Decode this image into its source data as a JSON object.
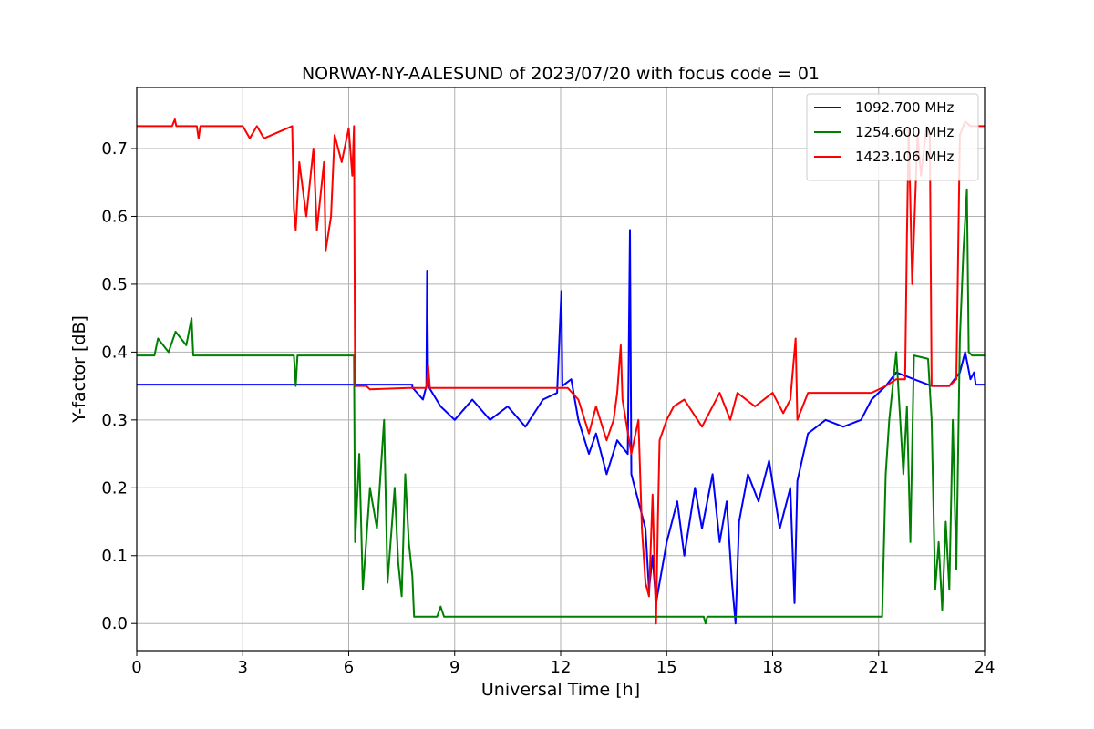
{
  "chart_data": {
    "type": "line",
    "title": "NORWAY-NY-AALESUND of 2023/07/20 with focus code = 01",
    "xlabel": "Universal Time [h]",
    "ylabel": "Y-factor [dB]",
    "xlim": [
      0,
      24
    ],
    "ylim": [
      -0.04,
      0.79
    ],
    "xticks": [
      0,
      3,
      6,
      9,
      12,
      15,
      18,
      21,
      24
    ],
    "yticks": [
      0.0,
      0.1,
      0.2,
      0.3,
      0.4,
      0.5,
      0.6,
      0.7
    ],
    "ytick_labels": [
      "0.0",
      "0.1",
      "0.2",
      "0.3",
      "0.4",
      "0.5",
      "0.6",
      "0.7"
    ],
    "grid": true,
    "legend_position": "top-right",
    "series": [
      {
        "name": "1092.700 MHz",
        "color": "#0000ff",
        "points": [
          [
            0,
            0.352
          ],
          [
            7.8,
            0.352
          ],
          [
            7.8,
            0.348
          ],
          [
            8.1,
            0.33
          ],
          [
            8.2,
            0.35
          ],
          [
            8.22,
            0.52
          ],
          [
            8.25,
            0.35
          ],
          [
            8.6,
            0.32
          ],
          [
            9,
            0.3
          ],
          [
            9.5,
            0.33
          ],
          [
            10,
            0.3
          ],
          [
            10.5,
            0.32
          ],
          [
            11,
            0.29
          ],
          [
            11.5,
            0.33
          ],
          [
            11.9,
            0.34
          ],
          [
            12.02,
            0.49
          ],
          [
            12.05,
            0.35
          ],
          [
            12.3,
            0.36
          ],
          [
            12.5,
            0.3
          ],
          [
            12.8,
            0.25
          ],
          [
            13,
            0.28
          ],
          [
            13.3,
            0.22
          ],
          [
            13.6,
            0.27
          ],
          [
            13.9,
            0.25
          ],
          [
            13.96,
            0.58
          ],
          [
            14,
            0.22
          ],
          [
            14.2,
            0.18
          ],
          [
            14.4,
            0.14
          ],
          [
            14.5,
            0.05
          ],
          [
            14.6,
            0.1
          ],
          [
            14.7,
            0.03
          ],
          [
            14.8,
            0.06
          ],
          [
            15,
            0.12
          ],
          [
            15.3,
            0.18
          ],
          [
            15.5,
            0.1
          ],
          [
            15.8,
            0.2
          ],
          [
            16,
            0.14
          ],
          [
            16.3,
            0.22
          ],
          [
            16.5,
            0.12
          ],
          [
            16.7,
            0.18
          ],
          [
            16.85,
            0.06
          ],
          [
            16.95,
            0.0
          ],
          [
            17.05,
            0.15
          ],
          [
            17.3,
            0.22
          ],
          [
            17.6,
            0.18
          ],
          [
            17.9,
            0.24
          ],
          [
            18.2,
            0.14
          ],
          [
            18.5,
            0.2
          ],
          [
            18.62,
            0.03
          ],
          [
            18.7,
            0.21
          ],
          [
            19,
            0.28
          ],
          [
            19.5,
            0.3
          ],
          [
            20,
            0.29
          ],
          [
            20.5,
            0.3
          ],
          [
            20.8,
            0.33
          ],
          [
            21.2,
            0.35
          ],
          [
            21.5,
            0.37
          ],
          [
            22,
            0.36
          ],
          [
            22.5,
            0.35
          ],
          [
            23,
            0.35
          ],
          [
            23.3,
            0.37
          ],
          [
            23.45,
            0.4
          ],
          [
            23.6,
            0.36
          ],
          [
            23.7,
            0.37
          ],
          [
            23.75,
            0.352
          ],
          [
            24,
            0.352
          ]
        ]
      },
      {
        "name": "1254.600 MHz",
        "color": "#008000",
        "points": [
          [
            0,
            0.395
          ],
          [
            0.5,
            0.395
          ],
          [
            0.6,
            0.42
          ],
          [
            0.9,
            0.4
          ],
          [
            1.1,
            0.43
          ],
          [
            1.4,
            0.41
          ],
          [
            1.55,
            0.45
          ],
          [
            1.6,
            0.395
          ],
          [
            4.45,
            0.395
          ],
          [
            4.5,
            0.35
          ],
          [
            4.55,
            0.395
          ],
          [
            6.15,
            0.395
          ],
          [
            6.18,
            0.12
          ],
          [
            6.3,
            0.25
          ],
          [
            6.4,
            0.05
          ],
          [
            6.6,
            0.2
          ],
          [
            6.8,
            0.14
          ],
          [
            7,
            0.3
          ],
          [
            7.1,
            0.06
          ],
          [
            7.3,
            0.2
          ],
          [
            7.4,
            0.09
          ],
          [
            7.5,
            0.04
          ],
          [
            7.6,
            0.22
          ],
          [
            7.7,
            0.12
          ],
          [
            7.8,
            0.07
          ],
          [
            7.85,
            0.01
          ],
          [
            8.5,
            0.01
          ],
          [
            8.6,
            0.025
          ],
          [
            8.7,
            0.01
          ],
          [
            13,
            0.01
          ],
          [
            15,
            0.01
          ],
          [
            16.05,
            0.01
          ],
          [
            16.1,
            0.0
          ],
          [
            16.15,
            0.01
          ],
          [
            21.1,
            0.01
          ],
          [
            21.2,
            0.22
          ],
          [
            21.3,
            0.3
          ],
          [
            21.5,
            0.4
          ],
          [
            21.7,
            0.22
          ],
          [
            21.8,
            0.32
          ],
          [
            21.9,
            0.12
          ],
          [
            22,
            0.395
          ],
          [
            22.4,
            0.39
          ],
          [
            22.5,
            0.3
          ],
          [
            22.6,
            0.05
          ],
          [
            22.7,
            0.12
          ],
          [
            22.8,
            0.02
          ],
          [
            22.9,
            0.15
          ],
          [
            23,
            0.05
          ],
          [
            23.1,
            0.3
          ],
          [
            23.2,
            0.08
          ],
          [
            23.3,
            0.42
          ],
          [
            23.4,
            0.55
          ],
          [
            23.5,
            0.64
          ],
          [
            23.55,
            0.4
          ],
          [
            23.65,
            0.395
          ],
          [
            24,
            0.395
          ]
        ]
      },
      {
        "name": "1423.106 MHz",
        "color": "#ff0000",
        "points": [
          [
            0,
            0.733
          ],
          [
            1.0,
            0.733
          ],
          [
            1.08,
            0.743
          ],
          [
            1.12,
            0.733
          ],
          [
            1.7,
            0.733
          ],
          [
            1.75,
            0.715
          ],
          [
            1.8,
            0.733
          ],
          [
            3,
            0.733
          ],
          [
            3.2,
            0.715
          ],
          [
            3.4,
            0.733
          ],
          [
            3.6,
            0.715
          ],
          [
            4.4,
            0.733
          ],
          [
            4.45,
            0.61
          ],
          [
            4.5,
            0.58
          ],
          [
            4.6,
            0.68
          ],
          [
            4.8,
            0.6
          ],
          [
            5,
            0.7
          ],
          [
            5.1,
            0.58
          ],
          [
            5.3,
            0.68
          ],
          [
            5.35,
            0.55
          ],
          [
            5.5,
            0.6
          ],
          [
            5.6,
            0.72
          ],
          [
            5.8,
            0.68
          ],
          [
            6,
            0.73
          ],
          [
            6.1,
            0.66
          ],
          [
            6.15,
            0.733
          ],
          [
            6.18,
            0.35
          ],
          [
            6.5,
            0.35
          ],
          [
            6.6,
            0.345
          ],
          [
            7.7,
            0.347
          ],
          [
            8.2,
            0.347
          ],
          [
            8.25,
            0.38
          ],
          [
            8.3,
            0.347
          ],
          [
            10,
            0.347
          ],
          [
            11.5,
            0.347
          ],
          [
            12.2,
            0.347
          ],
          [
            12.5,
            0.33
          ],
          [
            12.8,
            0.28
          ],
          [
            13,
            0.32
          ],
          [
            13.3,
            0.27
          ],
          [
            13.5,
            0.3
          ],
          [
            13.6,
            0.34
          ],
          [
            13.7,
            0.41
          ],
          [
            13.75,
            0.33
          ],
          [
            14,
            0.25
          ],
          [
            14.2,
            0.3
          ],
          [
            14.3,
            0.14
          ],
          [
            14.4,
            0.06
          ],
          [
            14.5,
            0.04
          ],
          [
            14.6,
            0.19
          ],
          [
            14.7,
            0.0
          ],
          [
            14.75,
            0.15
          ],
          [
            14.8,
            0.27
          ],
          [
            15,
            0.3
          ],
          [
            15.2,
            0.32
          ],
          [
            15.5,
            0.33
          ],
          [
            16,
            0.29
          ],
          [
            16.5,
            0.34
          ],
          [
            16.8,
            0.3
          ],
          [
            17,
            0.34
          ],
          [
            17.5,
            0.32
          ],
          [
            18,
            0.34
          ],
          [
            18.3,
            0.31
          ],
          [
            18.5,
            0.33
          ],
          [
            18.65,
            0.42
          ],
          [
            18.7,
            0.3
          ],
          [
            19,
            0.34
          ],
          [
            20,
            0.34
          ],
          [
            20.8,
            0.34
          ],
          [
            21.2,
            0.35
          ],
          [
            21.5,
            0.36
          ],
          [
            21.75,
            0.36
          ],
          [
            21.8,
            0.57
          ],
          [
            21.85,
            0.73
          ],
          [
            21.95,
            0.5
          ],
          [
            22.1,
            0.72
          ],
          [
            22.2,
            0.66
          ],
          [
            22.35,
            0.73
          ],
          [
            22.45,
            0.72
          ],
          [
            22.5,
            0.35
          ],
          [
            22.8,
            0.35
          ],
          [
            23,
            0.35
          ],
          [
            23.2,
            0.36
          ],
          [
            23.3,
            0.72
          ],
          [
            23.45,
            0.74
          ],
          [
            23.6,
            0.733
          ],
          [
            24,
            0.733
          ]
        ]
      }
    ]
  }
}
